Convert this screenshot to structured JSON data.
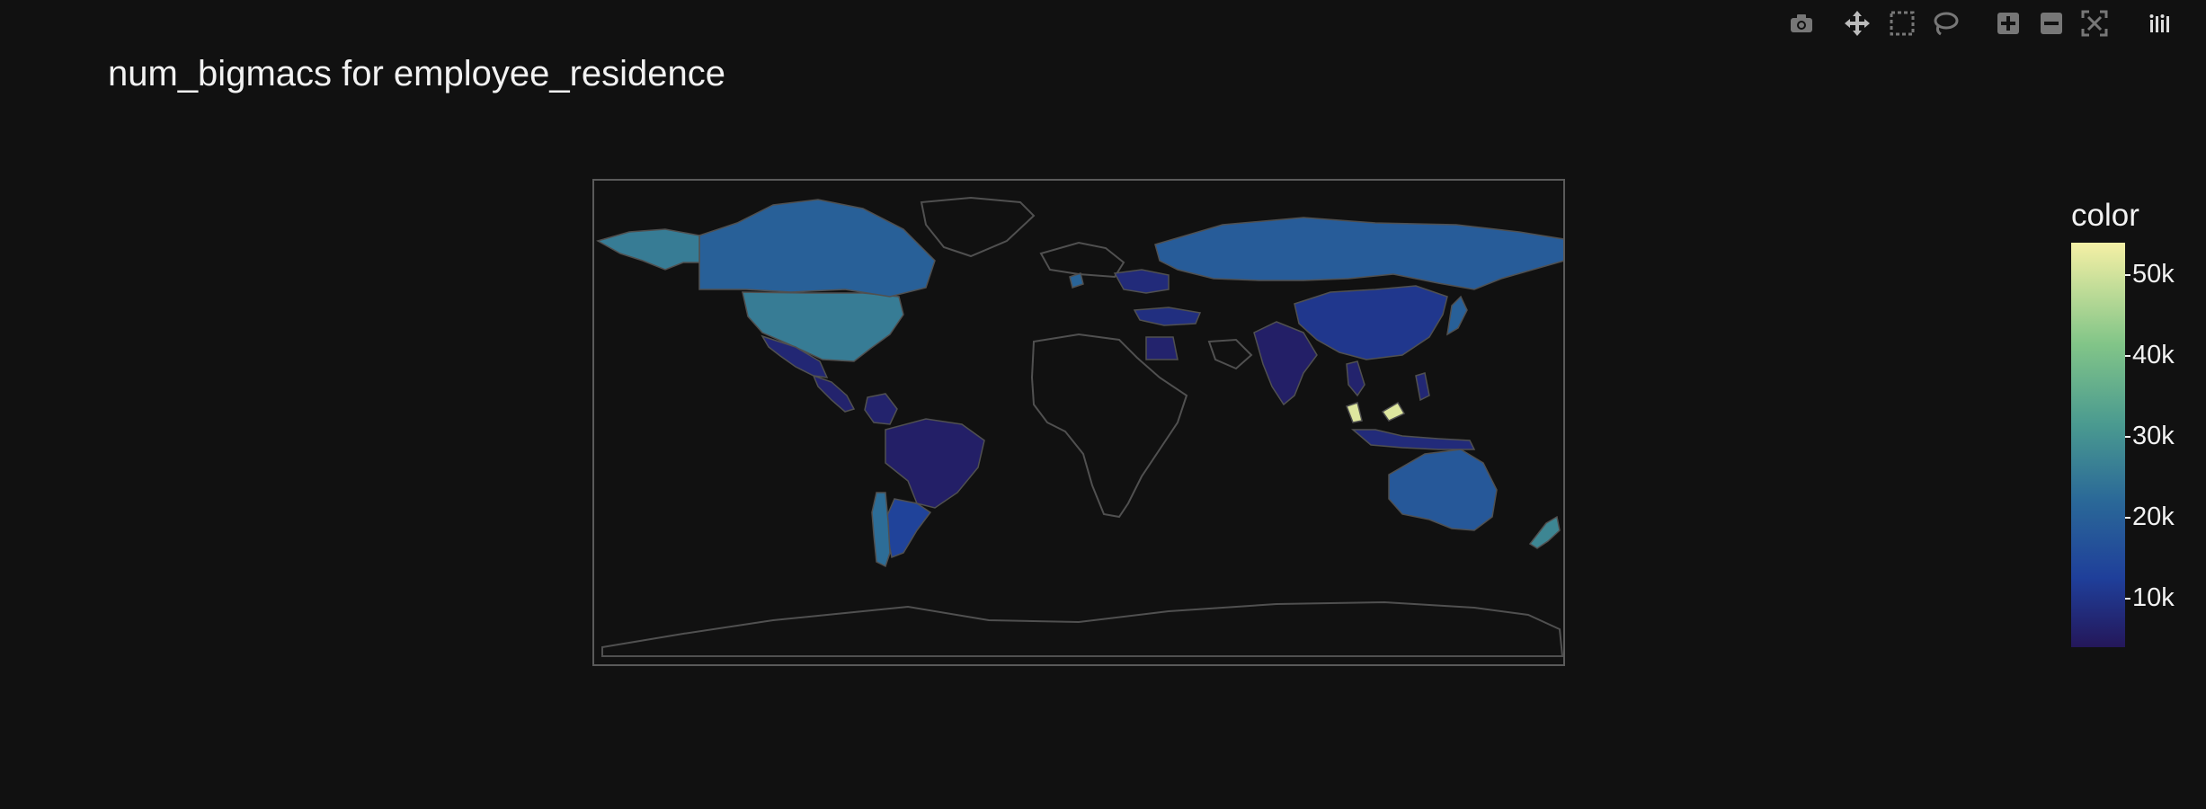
{
  "title": "num_bigmacs for employee_residence",
  "toolbar": {
    "icons": [
      "camera-icon",
      "pan-icon",
      "box-select-icon",
      "lasso-icon",
      "zoom-in-icon",
      "zoom-out-icon",
      "autoscale-icon",
      "plotly-logo-icon"
    ]
  },
  "colors": {
    "background": "#111111",
    "land_empty": "#111111",
    "coastline": "#505050",
    "frame": "#5a5a5a",
    "colorscale": [
      "#24175a",
      "#1f3f9a",
      "#2a6898",
      "#4a9a90",
      "#82c588",
      "#f5f0a5"
    ]
  },
  "chart_data": {
    "type": "choropleth",
    "title": "num_bigmacs for employee_residence",
    "colorbar": {
      "title": "color",
      "range": [
        4000,
        54000
      ],
      "ticks": [
        {
          "value": 10000,
          "label": "10k"
        },
        {
          "value": 20000,
          "label": "20k"
        },
        {
          "value": 30000,
          "label": "30k"
        },
        {
          "value": 40000,
          "label": "40k"
        },
        {
          "value": 50000,
          "label": "50k"
        }
      ]
    },
    "regions": [
      {
        "name": "United States",
        "value": 28000
      },
      {
        "name": "Canada",
        "value": 22000
      },
      {
        "name": "Alaska",
        "value": 28000
      },
      {
        "name": "Mexico",
        "value": 8000
      },
      {
        "name": "Central America",
        "value": 7000
      },
      {
        "name": "Colombia",
        "value": 7000
      },
      {
        "name": "Brazil",
        "value": 6000
      },
      {
        "name": "Argentina",
        "value": 15000
      },
      {
        "name": "Chile",
        "value": 25000
      },
      {
        "name": "Russia",
        "value": 21000
      },
      {
        "name": "Eastern Europe",
        "value": 9000
      },
      {
        "name": "Turkey",
        "value": 10000
      },
      {
        "name": "Saudi Arabia",
        "value": 7000
      },
      {
        "name": "India",
        "value": 6000
      },
      {
        "name": "China",
        "value": 12000
      },
      {
        "name": "Japan",
        "value": 22000
      },
      {
        "name": "Vietnam",
        "value": 7000
      },
      {
        "name": "Malaysia",
        "value": 52000
      },
      {
        "name": "Indonesia",
        "value": 9000
      },
      {
        "name": "Philippines",
        "value": 8000
      },
      {
        "name": "Australia",
        "value": 20000
      },
      {
        "name": "New Zealand",
        "value": 30000
      },
      {
        "name": "Ireland",
        "value": 23000
      }
    ]
  }
}
